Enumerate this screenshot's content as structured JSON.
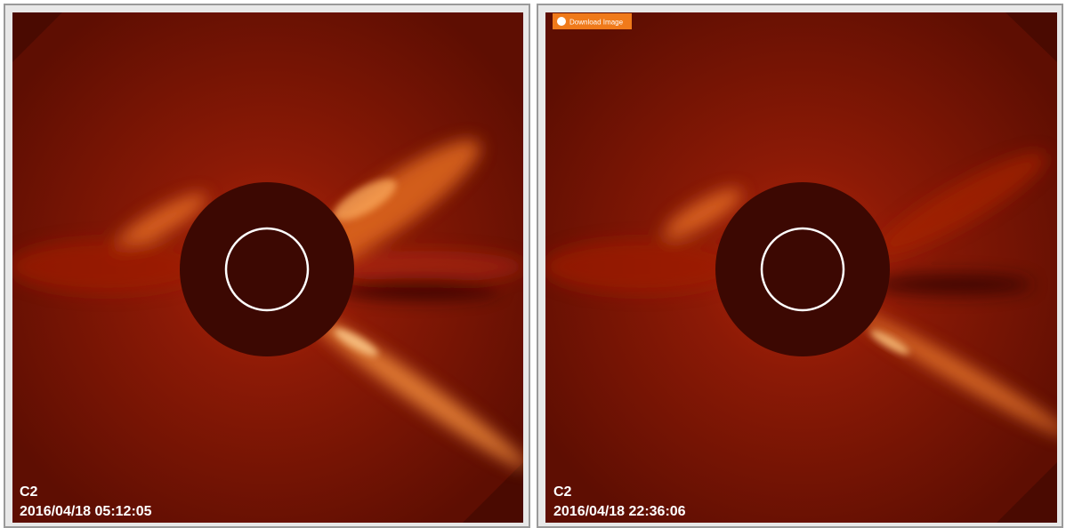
{
  "panels": [
    {
      "instrument": "C2",
      "timestamp": "2016/04/18 05:12:05"
    },
    {
      "instrument": "C2",
      "timestamp": "2016/04/18 22:36:06",
      "button": "Download Image"
    }
  ]
}
